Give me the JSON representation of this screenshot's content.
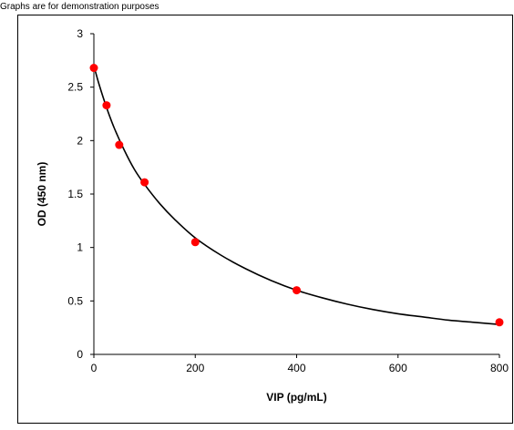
{
  "caption_text": "Graphs are for demonstration purposes",
  "colors": {
    "frame": "#000000",
    "axis": "#000000",
    "curve": "#000000",
    "points": "#ff0000",
    "background": "#ffffff"
  },
  "chart_data": {
    "type": "scatter",
    "title": "",
    "xlabel": "VIP (pg/mL)",
    "ylabel": "OD (450 nm)",
    "xlim": [
      0,
      800
    ],
    "ylim": [
      0,
      3
    ],
    "xticks": [
      0,
      200,
      400,
      600,
      800
    ],
    "yticks": [
      0,
      0.5,
      1,
      1.5,
      2,
      2.5,
      3
    ],
    "grid": false,
    "legend": "none",
    "series": [
      {
        "marker": "circle",
        "color": "#ff0000",
        "x": [
          0,
          25,
          50,
          100,
          200,
          400,
          800
        ],
        "y": [
          2.68,
          2.33,
          1.96,
          1.61,
          1.05,
          0.6,
          0.3
        ]
      }
    ],
    "fit_curve": {
      "color": "#000000",
      "x": [
        0,
        10,
        25,
        40,
        60,
        80,
        100,
        130,
        160,
        200,
        250,
        300,
        350,
        400,
        450,
        500,
        550,
        600,
        650,
        700,
        750,
        800
      ],
      "y": [
        2.7,
        2.53,
        2.31,
        2.12,
        1.91,
        1.73,
        1.59,
        1.41,
        1.26,
        1.09,
        0.93,
        0.8,
        0.69,
        0.6,
        0.53,
        0.47,
        0.42,
        0.38,
        0.35,
        0.32,
        0.3,
        0.28
      ]
    }
  }
}
